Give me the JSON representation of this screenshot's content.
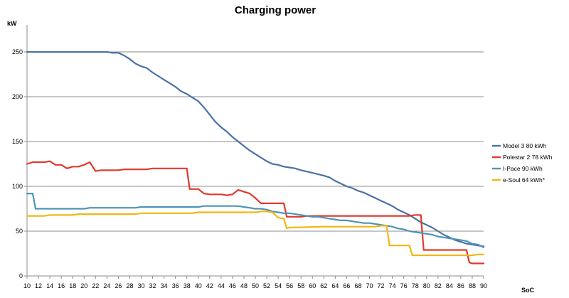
{
  "chart_data": {
    "type": "line",
    "title": "Charging power",
    "ylabel": "kW",
    "xlabel": "SoC",
    "xlim": [
      10,
      90
    ],
    "ylim": [
      0,
      250
    ],
    "yticks": [
      0,
      50,
      100,
      150,
      200,
      250
    ],
    "xticks": [
      10,
      12,
      14,
      16,
      18,
      20,
      22,
      24,
      26,
      28,
      30,
      32,
      34,
      36,
      38,
      40,
      42,
      44,
      46,
      48,
      50,
      52,
      54,
      56,
      58,
      60,
      62,
      64,
      66,
      68,
      70,
      72,
      74,
      76,
      78,
      80,
      82,
      84,
      86,
      88,
      90
    ],
    "grid": true,
    "legend_position": "right",
    "series": [
      {
        "name": "Model 3 80 kWh",
        "color": "#4a72a4",
        "points": [
          [
            10,
            250
          ],
          [
            24,
            250
          ],
          [
            25,
            249
          ],
          [
            26,
            249
          ],
          [
            27,
            246
          ],
          [
            28,
            242
          ],
          [
            29,
            237
          ],
          [
            30,
            234
          ],
          [
            31,
            232
          ],
          [
            32,
            227
          ],
          [
            33,
            223
          ],
          [
            34,
            219
          ],
          [
            35,
            215
          ],
          [
            36,
            211
          ],
          [
            37,
            206
          ],
          [
            38,
            203
          ],
          [
            39,
            199
          ],
          [
            40,
            195
          ],
          [
            41,
            188
          ],
          [
            42,
            180
          ],
          [
            43,
            172
          ],
          [
            44,
            166
          ],
          [
            45,
            161
          ],
          [
            46,
            155
          ],
          [
            47,
            150
          ],
          [
            48,
            145
          ],
          [
            49,
            140
          ],
          [
            50,
            136
          ],
          [
            51,
            132
          ],
          [
            52,
            128
          ],
          [
            53,
            125
          ],
          [
            54,
            124
          ],
          [
            55,
            122
          ],
          [
            56,
            121
          ],
          [
            57,
            120
          ],
          [
            58,
            118
          ],
          [
            60,
            115
          ],
          [
            62,
            112
          ],
          [
            63,
            110
          ],
          [
            64,
            106
          ],
          [
            65,
            103
          ],
          [
            66,
            100
          ],
          [
            67,
            98
          ],
          [
            68,
            95
          ],
          [
            69,
            93
          ],
          [
            70,
            90
          ],
          [
            71,
            87
          ],
          [
            72,
            84
          ],
          [
            73,
            81
          ],
          [
            74,
            78
          ],
          [
            75,
            74
          ],
          [
            76,
            71
          ],
          [
            77,
            68
          ],
          [
            78,
            64
          ],
          [
            79,
            60
          ],
          [
            80,
            57
          ],
          [
            81,
            54
          ],
          [
            82,
            50
          ],
          [
            83,
            46
          ],
          [
            84,
            43
          ],
          [
            85,
            40
          ],
          [
            86,
            38
          ],
          [
            87,
            36
          ],
          [
            88,
            35
          ],
          [
            89,
            34
          ],
          [
            90,
            33
          ]
        ]
      },
      {
        "name": "Polestar 2 78 kWh",
        "color": "#e2392b",
        "points": [
          [
            10,
            125
          ],
          [
            11,
            127
          ],
          [
            12,
            127
          ],
          [
            13,
            127
          ],
          [
            14,
            128
          ],
          [
            15,
            124
          ],
          [
            16,
            124
          ],
          [
            17,
            120
          ],
          [
            18,
            122
          ],
          [
            19,
            122
          ],
          [
            20,
            124
          ],
          [
            21,
            127
          ],
          [
            22,
            117
          ],
          [
            23,
            118
          ],
          [
            26,
            118
          ],
          [
            27,
            119
          ],
          [
            31,
            119
          ],
          [
            32,
            120
          ],
          [
            38,
            120
          ],
          [
            38.5,
            97
          ],
          [
            39,
            97
          ],
          [
            40,
            97
          ],
          [
            41,
            92
          ],
          [
            42,
            91
          ],
          [
            44,
            91
          ],
          [
            45,
            90
          ],
          [
            46,
            91
          ],
          [
            47,
            96
          ],
          [
            48,
            94
          ],
          [
            49,
            92
          ],
          [
            50,
            87
          ],
          [
            51,
            81
          ],
          [
            55,
            81
          ],
          [
            55.5,
            66
          ],
          [
            56,
            66
          ],
          [
            58,
            66
          ],
          [
            59,
            67
          ],
          [
            77,
            67
          ],
          [
            78,
            68
          ],
          [
            79,
            68
          ],
          [
            79.5,
            29
          ],
          [
            80,
            29
          ],
          [
            86,
            29
          ],
          [
            87,
            29
          ],
          [
            87.5,
            15
          ],
          [
            88,
            14
          ],
          [
            90,
            14
          ]
        ]
      },
      {
        "name": "I-Pace 90 kWh",
        "color": "#4e93b8",
        "points": [
          [
            10,
            92
          ],
          [
            11,
            92
          ],
          [
            11.5,
            75
          ],
          [
            12,
            75
          ],
          [
            20,
            75
          ],
          [
            21,
            76
          ],
          [
            29,
            76
          ],
          [
            30,
            77
          ],
          [
            39,
            77
          ],
          [
            40,
            77
          ],
          [
            41,
            78
          ],
          [
            47,
            78
          ],
          [
            48,
            77
          ],
          [
            49,
            76
          ],
          [
            50,
            75
          ],
          [
            51,
            75
          ],
          [
            52,
            74
          ],
          [
            53,
            72
          ],
          [
            54,
            71
          ],
          [
            55,
            70
          ],
          [
            56,
            70
          ],
          [
            57,
            69
          ],
          [
            58,
            68
          ],
          [
            59,
            67
          ],
          [
            60,
            66
          ],
          [
            61,
            66
          ],
          [
            62,
            65
          ],
          [
            63,
            64
          ],
          [
            64,
            63
          ],
          [
            65,
            62
          ],
          [
            66,
            62
          ],
          [
            67,
            61
          ],
          [
            68,
            60
          ],
          [
            69,
            59
          ],
          [
            70,
            59
          ],
          [
            71,
            58
          ],
          [
            72,
            57
          ],
          [
            73,
            56
          ],
          [
            74,
            55
          ],
          [
            75,
            53
          ],
          [
            76,
            52
          ],
          [
            77,
            50
          ],
          [
            78,
            49
          ],
          [
            79,
            48
          ],
          [
            80,
            47
          ],
          [
            81,
            46
          ],
          [
            82,
            44
          ],
          [
            83,
            43
          ],
          [
            84,
            42
          ],
          [
            85,
            41
          ],
          [
            86,
            40
          ],
          [
            87,
            39
          ],
          [
            88,
            36
          ],
          [
            89,
            35
          ],
          [
            90,
            32
          ]
        ]
      },
      {
        "name": "e-Soul 64 kWh*",
        "color": "#f1b711",
        "points": [
          [
            10,
            67
          ],
          [
            13,
            67
          ],
          [
            14,
            68
          ],
          [
            18,
            68
          ],
          [
            19,
            69
          ],
          [
            29,
            69
          ],
          [
            30,
            70
          ],
          [
            39,
            70
          ],
          [
            40,
            71
          ],
          [
            50,
            71
          ],
          [
            51,
            72
          ],
          [
            52,
            72
          ],
          [
            53,
            71
          ],
          [
            54,
            65
          ],
          [
            55,
            64
          ],
          [
            55.5,
            53
          ],
          [
            56,
            54
          ],
          [
            62,
            55
          ],
          [
            71,
            55
          ],
          [
            72,
            56
          ],
          [
            73,
            56
          ],
          [
            73.5,
            34
          ],
          [
            74,
            34
          ],
          [
            77,
            34
          ],
          [
            77.5,
            23
          ],
          [
            78,
            23
          ],
          [
            88,
            23
          ],
          [
            89,
            24
          ],
          [
            90,
            24
          ]
        ]
      }
    ]
  }
}
